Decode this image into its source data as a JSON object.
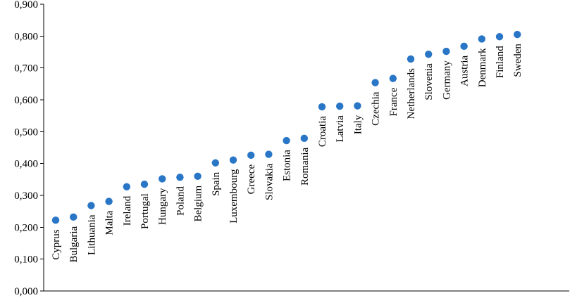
{
  "chart_data": {
    "type": "scatter",
    "title": "",
    "xlabel": "",
    "ylabel": "",
    "ylim": [
      0,
      0.9
    ],
    "y_ticks": [
      "0,000",
      "0,100",
      "0,200",
      "0,300",
      "0,400",
      "0,500",
      "0,600",
      "0,700",
      "0,800",
      "0,900"
    ],
    "grid": false,
    "legend": "none",
    "marker_color": "#2a76c6",
    "categories": [
      "Cyprus",
      "Bulgaria",
      "Lithuania",
      "Malta",
      "Ireland",
      "Portugal",
      "Hungary",
      "Poland",
      "Belgium",
      "Spain",
      "Luxembourg",
      "Greece",
      "Slovakia",
      "Estonia",
      "Romania",
      "Croatia",
      "Latvia",
      "Italy",
      "Czechia",
      "France",
      "Netherlands",
      "Slovenia",
      "Germany",
      "Austria",
      "Denmark",
      "Finland",
      "Sweden"
    ],
    "series": [
      {
        "values": [
          0.222,
          0.232,
          0.268,
          0.281,
          0.327,
          0.335,
          0.352,
          0.357,
          0.36,
          0.402,
          0.411,
          0.426,
          0.429,
          0.472,
          0.479,
          0.578,
          0.58,
          0.581,
          0.654,
          0.667,
          0.728,
          0.743,
          0.752,
          0.768,
          0.791,
          0.798,
          0.805
        ]
      }
    ]
  }
}
